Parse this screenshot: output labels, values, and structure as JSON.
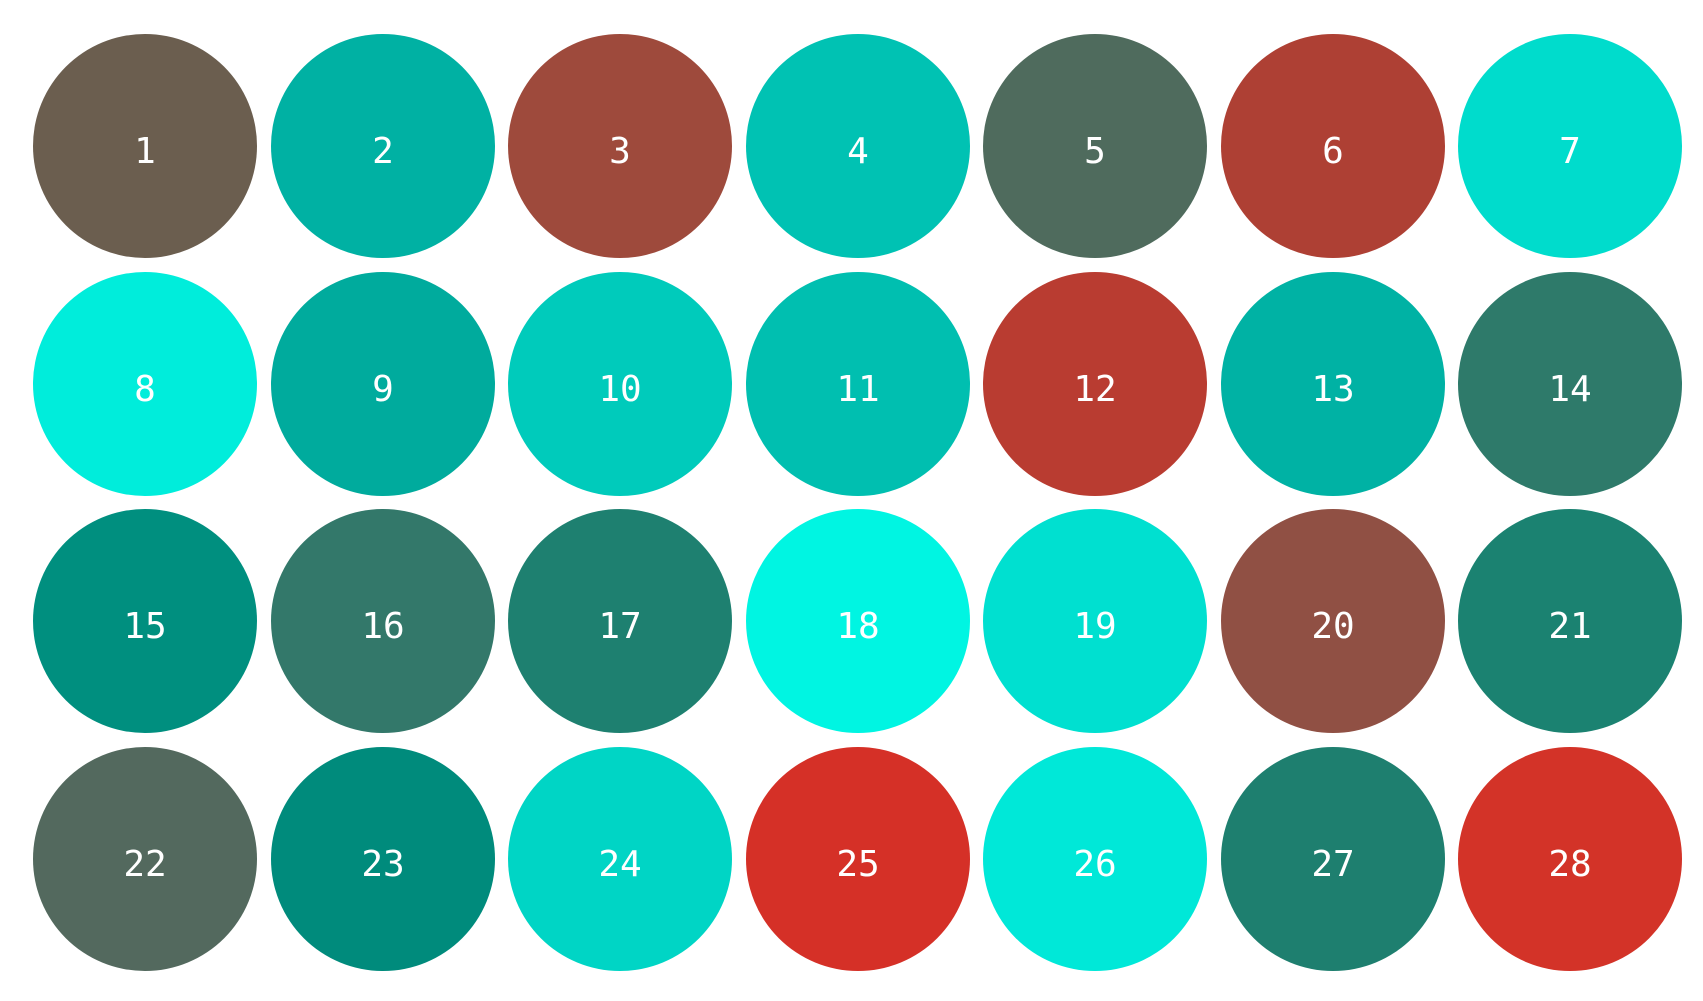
{
  "circles": [
    {
      "label": "1",
      "color": "#6b5e4f"
    },
    {
      "label": "2",
      "color": "#00b1a3"
    },
    {
      "label": "3",
      "color": "#9e4a3c"
    },
    {
      "label": "4",
      "color": "#00c2b3"
    },
    {
      "label": "5",
      "color": "#4f6b5d"
    },
    {
      "label": "6",
      "color": "#ae4034"
    },
    {
      "label": "7",
      "color": "#00dccc"
    },
    {
      "label": "8",
      "color": "#00eddb"
    },
    {
      "label": "9",
      "color": "#00ab9d"
    },
    {
      "label": "10",
      "color": "#00cbbb"
    },
    {
      "label": "11",
      "color": "#00bfb0"
    },
    {
      "label": "12",
      "color": "#b93c31"
    },
    {
      "label": "13",
      "color": "#00b2a4"
    },
    {
      "label": "14",
      "color": "#2e7a6a"
    },
    {
      "label": "15",
      "color": "#008f7f"
    },
    {
      "label": "16",
      "color": "#33786a"
    },
    {
      "label": "17",
      "color": "#1e8070"
    },
    {
      "label": "18",
      "color": "#00f5e2"
    },
    {
      "label": "19",
      "color": "#00e0d0"
    },
    {
      "label": "20",
      "color": "#905044"
    },
    {
      "label": "21",
      "color": "#1b8271"
    },
    {
      "label": "22",
      "color": "#53695e"
    },
    {
      "label": "23",
      "color": "#008b7c"
    },
    {
      "label": "24",
      "color": "#00d5c5"
    },
    {
      "label": "25",
      "color": "#d53027"
    },
    {
      "label": "26",
      "color": "#00e8d8"
    },
    {
      "label": "27",
      "color": "#1e7f6f"
    },
    {
      "label": "28",
      "color": "#d33328"
    }
  ]
}
